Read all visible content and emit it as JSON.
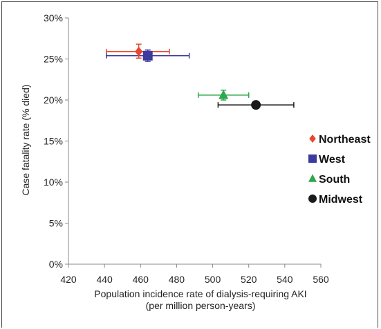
{
  "chart_data": {
    "type": "scatter",
    "title": "",
    "xlabel": "Population incidence rate of dialysis-requiring AKI",
    "xlabel_sub": "(per million person-years)",
    "ylabel": "Case fatality rate (% died)",
    "xlim": [
      420,
      560
    ],
    "ylim": [
      0,
      30
    ],
    "x_ticks": [
      "420",
      "440",
      "460",
      "480",
      "500",
      "520",
      "540",
      "560"
    ],
    "y_ticks": [
      "0%",
      "5%",
      "10%",
      "15%",
      "20%",
      "25%",
      "30%"
    ],
    "legend_position": "right",
    "series": [
      {
        "name": "Northeast",
        "marker": "diamond",
        "color": "#e8472b",
        "x": 459,
        "y": 25.9,
        "x_err": [
          441,
          476
        ],
        "y_err": [
          25.1,
          26.8
        ]
      },
      {
        "name": "West",
        "marker": "square",
        "color": "#3d3a9e",
        "x": 464,
        "y": 25.4,
        "x_err": [
          441,
          487
        ],
        "y_err": [
          24.7,
          26.1
        ]
      },
      {
        "name": "South",
        "marker": "triangle",
        "color": "#2ea84a",
        "x": 506,
        "y": 20.6,
        "x_err": [
          492,
          520
        ],
        "y_err": [
          20.0,
          21.2
        ]
      },
      {
        "name": "Midwest",
        "marker": "circle",
        "color": "#1a1a1a",
        "x": 524,
        "y": 19.4,
        "x_err": [
          503,
          545
        ],
        "y_err": [
          19.4,
          19.4
        ]
      }
    ]
  }
}
